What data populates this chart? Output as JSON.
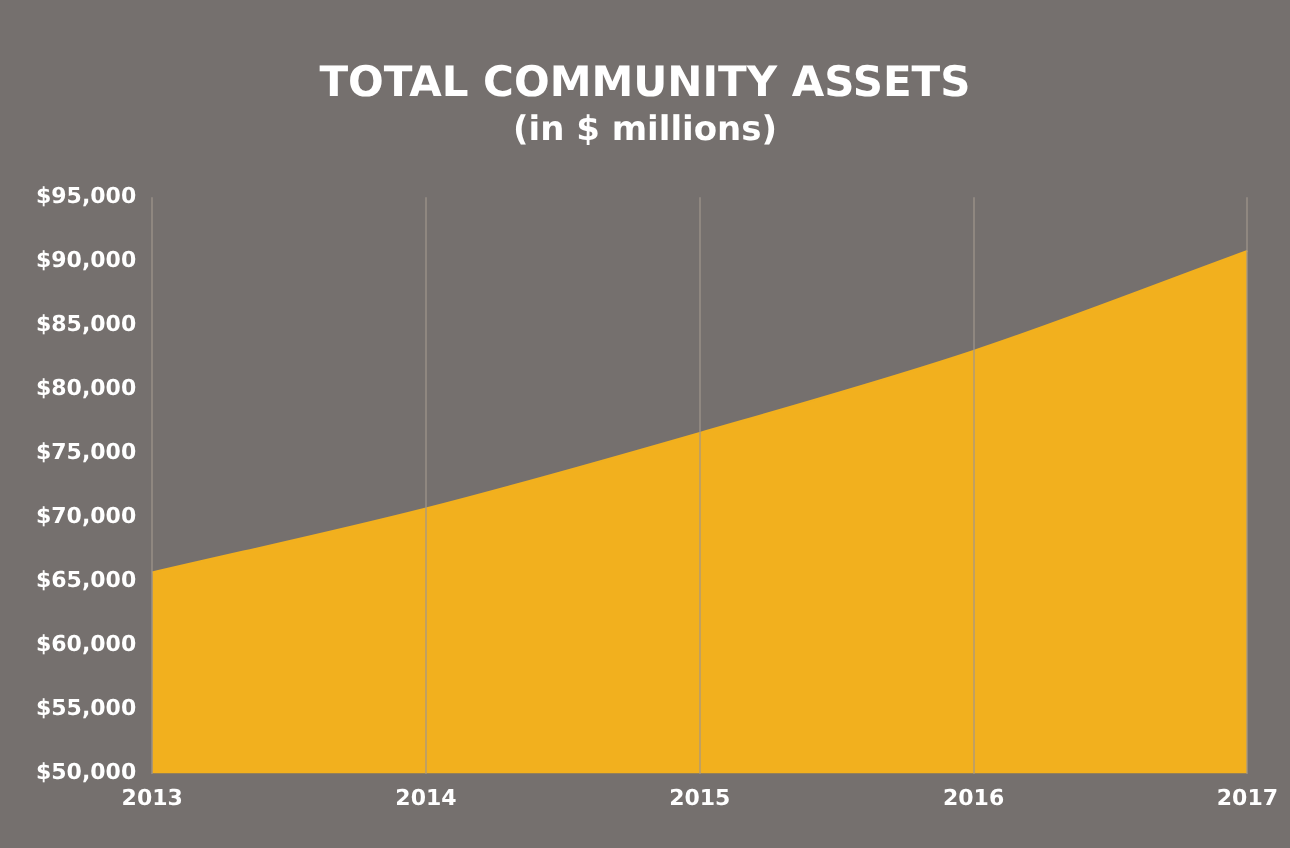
{
  "chart_data": {
    "type": "area",
    "title": "TOTAL COMMUNITY ASSETS",
    "subtitle": "(in $ millions)",
    "categories": [
      "2013",
      "2014",
      "2015",
      "2016",
      "2017"
    ],
    "values": [
      65700,
      70700,
      76600,
      83000,
      90800
    ],
    "color": "#f2b01e",
    "ylim": [
      50000,
      95000
    ],
    "yticks": [
      {
        "value": 50000,
        "label": "$50,000"
      },
      {
        "value": 55000,
        "label": "$55,000"
      },
      {
        "value": 60000,
        "label": "$60,000"
      },
      {
        "value": 65000,
        "label": "$65,000"
      },
      {
        "value": 70000,
        "label": "$70,000"
      },
      {
        "value": 75000,
        "label": "$75,000"
      },
      {
        "value": 80000,
        "label": "$80,000"
      },
      {
        "value": 85000,
        "label": "$85,000"
      },
      {
        "value": 90000,
        "label": "$90,000"
      },
      {
        "value": 95000,
        "label": "$95,000"
      }
    ],
    "grid": "x",
    "legend": false
  }
}
